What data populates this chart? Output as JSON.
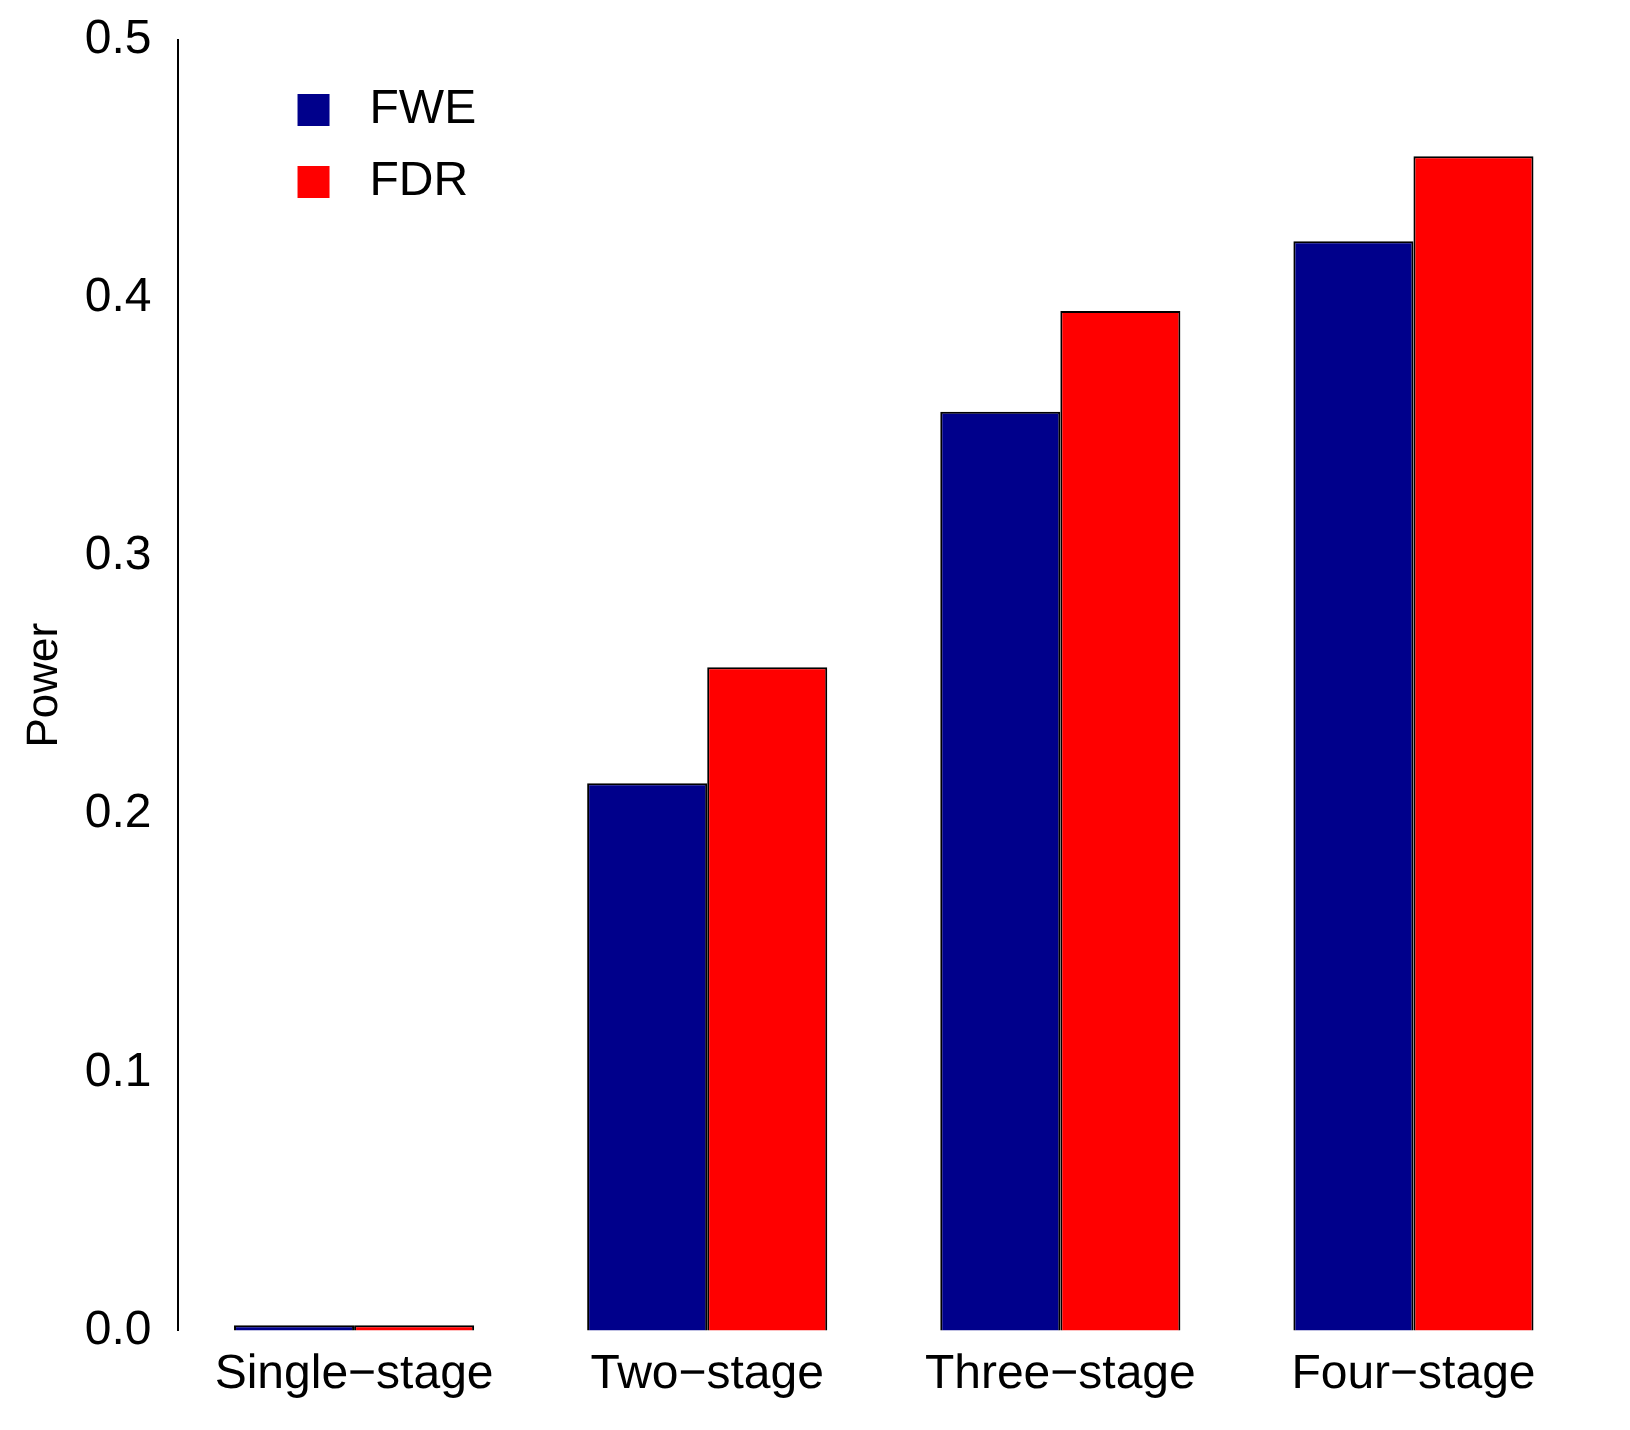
{
  "chart_data": {
    "type": "bar",
    "ylabel": "Power",
    "categories": [
      "Single−stage",
      "Two−stage",
      "Three−stage",
      "Four−stage"
    ],
    "series": [
      {
        "name": "FWE",
        "color": "#00008b",
        "values": [
          0.002,
          0.212,
          0.356,
          0.422
        ]
      },
      {
        "name": "FDR",
        "color": "#ff0000",
        "values": [
          0.002,
          0.257,
          0.395,
          0.455
        ]
      }
    ],
    "ylim": [
      0,
      0.5
    ],
    "yticks": [
      {
        "value": 0,
        "label": "0.0"
      },
      {
        "value": 0.1,
        "label": "0.1"
      },
      {
        "value": 0.2,
        "label": "0.2"
      },
      {
        "value": 0.3,
        "label": "0.3"
      },
      {
        "value": 0.4,
        "label": "0.4"
      },
      {
        "value": 0.5,
        "label": "0.5"
      }
    ],
    "grid": false,
    "legend": "top left"
  }
}
